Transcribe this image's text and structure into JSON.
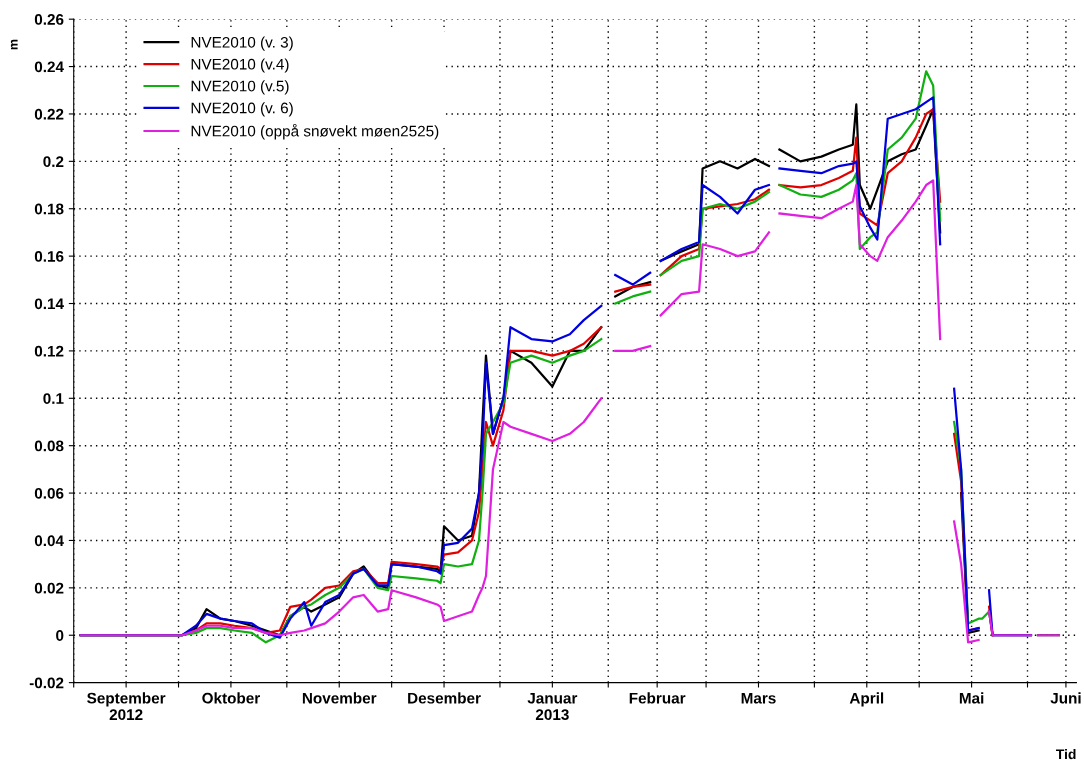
{
  "chart_data": {
    "type": "line",
    "ylabel": "m",
    "xlabel": "Tid",
    "x": [
      "2012-09-03",
      "2012-10-02",
      "2012-10-06",
      "2012-10-09",
      "2012-10-13",
      "2012-10-17",
      "2012-10-22",
      "2012-10-26",
      "2012-10-30",
      "2012-11-02",
      "2012-11-06",
      "2012-11-08",
      "2012-11-12",
      "2012-11-16",
      "2012-11-20",
      "2012-11-23",
      "2012-11-27",
      "2012-11-30",
      "2012-12-01",
      "2012-12-08",
      "2012-12-14",
      "2012-12-15",
      "2012-12-16",
      "2012-12-20",
      "2012-12-24",
      "2012-12-26",
      "2012-12-27",
      "2012-12-28",
      "2012-12-30",
      "2013-01-02",
      "2013-01-04",
      "2013-01-10",
      "2013-01-16",
      "2013-01-21",
      "2013-01-25",
      "2013-01-30",
      "2013-01-31",
      "2013-02-03",
      "2013-02-08",
      "2013-02-13",
      "2013-02-14",
      "2013-02-16",
      "2013-02-22",
      "2013-02-27",
      "2013-02-28",
      "2013-03-05",
      "2013-03-10",
      "2013-03-15",
      "2013-03-19",
      "2013-03-20",
      "2013-03-22",
      "2013-03-28",
      "2013-04-03",
      "2013-04-08",
      "2013-04-12",
      "2013-04-13",
      "2013-04-14",
      "2013-04-17",
      "2013-04-19",
      "2013-04-22",
      "2013-04-26",
      "2013-04-30",
      "2013-05-03",
      "2013-05-05",
      "2013-05-07",
      "2013-05-08",
      "2013-05-11",
      "2013-05-13",
      "2013-05-15",
      "2013-05-18",
      "2013-05-19",
      "2013-05-21",
      "2013-05-22",
      "2013-06-02",
      "2013-06-03",
      "2013-06-04",
      "2013-06-10"
    ],
    "series": [
      {
        "name": "NVE2010 (v. 3)",
        "color": "#000000",
        "values": [
          0,
          0,
          0.003,
          0.011,
          0.007,
          0.006,
          0.004,
          0.002,
          0,
          0.008,
          0.012,
          0.01,
          0.013,
          0.016,
          0.026,
          0.029,
          0.021,
          0.02,
          0.03,
          0.029,
          0.028,
          0.027,
          0.046,
          0.04,
          0.042,
          0.06,
          0.09,
          0.118,
          0.085,
          0.1,
          0.12,
          0.115,
          0.105,
          0.12,
          0.12,
          0.13,
          null,
          0.143,
          0.147,
          0.149,
          null,
          0.158,
          0.162,
          0.165,
          0.197,
          0.2,
          0.197,
          0.201,
          0.198,
          null,
          0.205,
          0.2,
          0.202,
          0.205,
          0.207,
          0.224,
          0.19,
          0.18,
          0.188,
          0.2,
          0.203,
          0.205,
          0.215,
          0.222,
          0.17,
          null,
          null,
          0.06,
          0.001,
          0.002,
          null,
          0.01,
          0,
          0,
          null,
          0,
          0
        ]
      },
      {
        "name": "NVE2010 (v.4)",
        "color": "#e00000",
        "values": [
          0,
          0,
          0.002,
          0.005,
          0.005,
          0.004,
          0.003,
          0.001,
          0.002,
          0.012,
          0.013,
          0.015,
          0.02,
          0.021,
          0.027,
          0.028,
          0.022,
          0.022,
          0.031,
          0.03,
          0.029,
          0.028,
          0.034,
          0.035,
          0.04,
          0.052,
          0.07,
          0.09,
          0.08,
          0.095,
          0.12,
          0.12,
          0.118,
          0.12,
          0.123,
          0.13,
          null,
          0.145,
          0.147,
          0.148,
          null,
          0.152,
          0.16,
          0.163,
          0.18,
          0.181,
          0.182,
          0.184,
          0.188,
          null,
          0.19,
          0.189,
          0.19,
          0.193,
          0.196,
          0.21,
          0.178,
          0.175,
          0.173,
          0.195,
          0.2,
          0.21,
          0.22,
          0.222,
          0.183,
          null,
          0.085,
          0.065,
          0.002,
          0.003,
          null,
          0.012,
          0,
          null,
          null,
          null,
          null
        ]
      },
      {
        "name": "NVE2010 (v.5)",
        "color": "#10b010",
        "values": [
          0,
          0,
          0.001,
          0.003,
          0.003,
          0.002,
          0.001,
          -0.003,
          0,
          0.008,
          0.012,
          0.013,
          0.017,
          0.02,
          0.026,
          0.028,
          0.02,
          0.019,
          0.025,
          0.024,
          0.023,
          0.022,
          0.03,
          0.029,
          0.03,
          0.04,
          0.06,
          0.085,
          0.09,
          0.098,
          0.115,
          0.118,
          0.115,
          0.118,
          0.12,
          0.125,
          null,
          0.14,
          0.143,
          0.145,
          null,
          0.152,
          0.158,
          0.16,
          0.18,
          0.182,
          0.18,
          0.183,
          0.187,
          null,
          0.19,
          0.186,
          0.185,
          0.188,
          0.192,
          0.195,
          0.163,
          0.168,
          0.17,
          0.205,
          0.21,
          0.218,
          0.238,
          0.232,
          0.175,
          null,
          0.09,
          0.07,
          0.005,
          0.007,
          0.007,
          0.01,
          null,
          null,
          null,
          null,
          null
        ]
      },
      {
        "name": "NVE2010 (v. 6)",
        "color": "#0000e0",
        "values": [
          0,
          0,
          0.004,
          0.009,
          0.007,
          0.006,
          0.005,
          0.001,
          -0.001,
          0.007,
          0.014,
          0.004,
          0.014,
          0.017,
          0.026,
          0.028,
          0.021,
          0.021,
          0.03,
          0.029,
          0.027,
          0.026,
          0.038,
          0.039,
          0.045,
          0.06,
          0.08,
          0.115,
          0.085,
          0.1,
          0.13,
          0.125,
          0.124,
          0.127,
          0.133,
          0.139,
          null,
          0.152,
          0.148,
          0.153,
          null,
          0.158,
          0.163,
          0.166,
          0.19,
          0.185,
          0.178,
          0.188,
          0.19,
          null,
          0.197,
          0.196,
          0.195,
          0.198,
          0.199,
          0.2,
          0.181,
          0.172,
          0.167,
          0.218,
          0.22,
          0.222,
          0.225,
          0.227,
          0.165,
          null,
          0.104,
          0.07,
          0.002,
          0.003,
          null,
          0.019,
          0,
          0,
          null,
          null,
          null
        ]
      },
      {
        "name": "NVE2010 (oppå snøvekt møen2525)",
        "color": "#e020e0",
        "values": [
          0,
          0,
          0.002,
          0.004,
          0.004,
          0.003,
          0.003,
          0.001,
          0,
          0.001,
          0.002,
          0.003,
          0.005,
          0.01,
          0.016,
          0.017,
          0.01,
          0.011,
          0.019,
          0.016,
          0.013,
          0.012,
          0.006,
          0.008,
          0.01,
          0.017,
          0.02,
          0.025,
          0.07,
          0.09,
          0.088,
          0.085,
          0.082,
          0.085,
          0.09,
          0.1,
          null,
          0.12,
          0.12,
          0.122,
          null,
          0.135,
          0.144,
          0.145,
          0.165,
          0.163,
          0.16,
          0.162,
          0.17,
          null,
          0.178,
          0.177,
          0.176,
          0.18,
          0.183,
          0.19,
          0.165,
          0.16,
          0.158,
          0.168,
          0.175,
          0.183,
          0.19,
          0.192,
          0.125,
          null,
          0.048,
          0.03,
          -0.003,
          -0.002,
          null,
          0.01,
          0,
          0,
          null,
          0,
          0
        ]
      }
    ],
    "xlim": [
      "2012-09-01",
      "2013-06-15"
    ],
    "xticks": [
      {
        "value": "2012-09-01",
        "label": null
      },
      {
        "value": "2012-09-16",
        "label": "September\n2012"
      },
      {
        "value": "2012-10-01",
        "label": null
      },
      {
        "value": "2012-10-16",
        "label": "Oktober"
      },
      {
        "value": "2012-11-01",
        "label": null
      },
      {
        "value": "2012-11-16",
        "label": "November"
      },
      {
        "value": "2012-12-01",
        "label": null
      },
      {
        "value": "2012-12-16",
        "label": "Desember"
      },
      {
        "value": "2013-01-01",
        "label": null
      },
      {
        "value": "2013-01-16",
        "label": "Januar\n2013"
      },
      {
        "value": "2013-02-01",
        "label": null
      },
      {
        "value": "2013-02-15",
        "label": "Februar"
      },
      {
        "value": "2013-03-01",
        "label": null
      },
      {
        "value": "2013-03-16",
        "label": "Mars"
      },
      {
        "value": "2013-04-01",
        "label": null
      },
      {
        "value": "2013-04-16",
        "label": "April"
      },
      {
        "value": "2013-05-01",
        "label": null
      },
      {
        "value": "2013-05-16",
        "label": "Mai"
      },
      {
        "value": "2013-06-01",
        "label": null
      },
      {
        "value": "2013-06-12",
        "label": "Juni"
      }
    ],
    "ylim": [
      -0.02,
      0.26
    ],
    "yticks": [
      -0.02,
      0,
      0.02,
      0.04,
      0.06,
      0.08,
      0.1,
      0.12,
      0.14,
      0.16,
      0.18,
      0.2,
      0.22,
      0.24,
      0.26
    ],
    "grid": true,
    "legend": "top left",
    "marker": "none",
    "line_style": "solid"
  }
}
